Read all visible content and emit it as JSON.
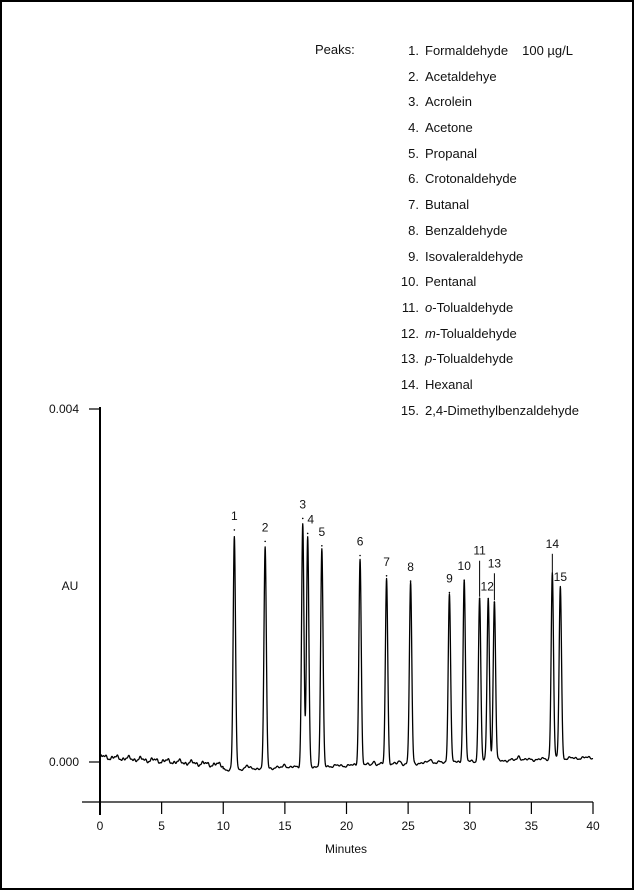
{
  "legend": {
    "heading": "Peaks:",
    "concentration": "100 µg/L",
    "items": [
      {
        "num": "1.",
        "prefix": "",
        "italic": "",
        "name": "Formaldehyde"
      },
      {
        "num": "2.",
        "prefix": "",
        "italic": "",
        "name": "Acetaldehye"
      },
      {
        "num": "3.",
        "prefix": "",
        "italic": "",
        "name": "Acrolein"
      },
      {
        "num": "4.",
        "prefix": "",
        "italic": "",
        "name": "Acetone"
      },
      {
        "num": "5.",
        "prefix": "",
        "italic": "",
        "name": "Propanal"
      },
      {
        "num": "6.",
        "prefix": "",
        "italic": "",
        "name": "Crotonaldehyde"
      },
      {
        "num": "7.",
        "prefix": "",
        "italic": "",
        "name": "Butanal"
      },
      {
        "num": "8.",
        "prefix": "",
        "italic": "",
        "name": "Benzaldehyde"
      },
      {
        "num": "9.",
        "prefix": "",
        "italic": "",
        "name": "Isovaleraldehyde"
      },
      {
        "num": "10.",
        "prefix": "",
        "italic": "",
        "name": "Pentanal"
      },
      {
        "num": "11.",
        "prefix": "",
        "italic": "o",
        "name": "-Tolualdehyde"
      },
      {
        "num": "12.",
        "prefix": "",
        "italic": "m",
        "name": "-Tolualdehyde"
      },
      {
        "num": "13.",
        "prefix": "",
        "italic": "p",
        "name": "-Tolualdehyde"
      },
      {
        "num": "14.",
        "prefix": "",
        "italic": "",
        "name": "Hexanal"
      },
      {
        "num": "15.",
        "prefix": "",
        "italic": "",
        "name": "2,4-Dimethylbenzaldehyde"
      }
    ]
  },
  "chart_data": {
    "type": "line",
    "title": "",
    "xlabel": "Minutes",
    "ylabel": "AU",
    "xlim": [
      0,
      40
    ],
    "ylim": [
      0,
      0.004
    ],
    "x_ticks": [
      "0",
      "5",
      "10",
      "15",
      "20",
      "25",
      "30",
      "35",
      "40"
    ],
    "y_ticks": [
      "0.000",
      "0.004"
    ],
    "y_tick_values": [
      0,
      0.004
    ],
    "grid": false,
    "colors": {
      "trace": "#000000"
    },
    "series": [
      {
        "peaks": [
          {
            "label": "1",
            "time": 10.9,
            "height": 0.00263
          },
          {
            "label": "2",
            "time": 13.4,
            "height": 0.0025
          },
          {
            "label": "3",
            "time": 16.45,
            "height": 0.00276
          },
          {
            "label": "4",
            "time": 16.85,
            "height": 0.00259
          },
          {
            "label": "5",
            "time": 18.0,
            "height": 0.00245
          },
          {
            "label": "6",
            "time": 21.1,
            "height": 0.00234
          },
          {
            "label": "7",
            "time": 23.25,
            "height": 0.00211
          },
          {
            "label": "8",
            "time": 25.2,
            "height": 0.00205
          },
          {
            "label": "9",
            "time": 28.35,
            "height": 0.00192
          },
          {
            "label": "10",
            "time": 29.55,
            "height": 0.00206
          },
          {
            "label": "11",
            "time": 30.8,
            "height": 0.00185
          },
          {
            "label": "12",
            "time": 31.5,
            "height": 0.00185
          },
          {
            "label": "13",
            "time": 32.0,
            "height": 0.00181
          },
          {
            "label": "14",
            "time": 36.7,
            "height": 0.00211
          },
          {
            "label": "15",
            "time": 37.35,
            "height": 0.00196
          }
        ]
      }
    ]
  }
}
